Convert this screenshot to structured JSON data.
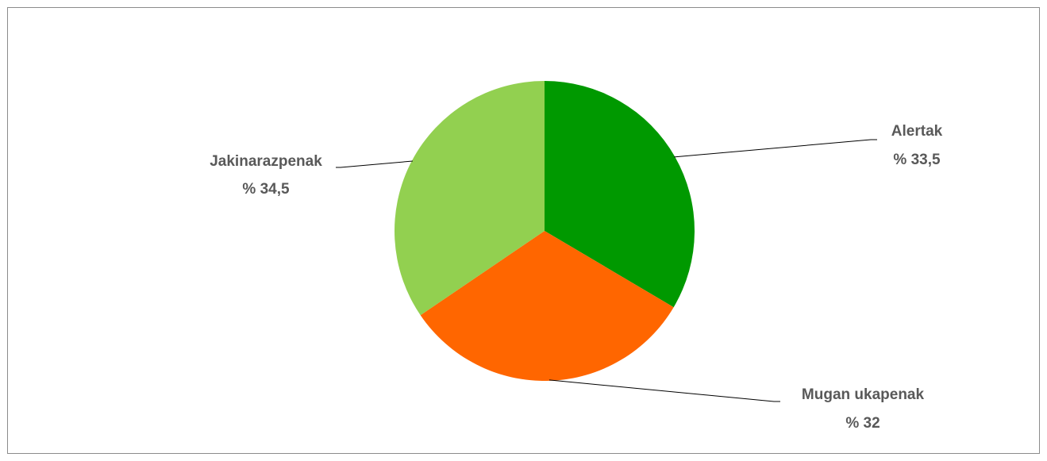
{
  "chart_data": {
    "type": "pie",
    "slices": [
      {
        "label": "Alertak",
        "value": 33.5,
        "value_text": "% 33,5",
        "color": "#009900"
      },
      {
        "label": "Mugan ukapenak",
        "value": 32,
        "value_text": "% 32",
        "color": "#ff6600"
      },
      {
        "label": "Jakinarazpenak",
        "value": 34.5,
        "value_text": "% 34,5",
        "color": "#92d050"
      }
    ],
    "start_angle_deg": 0,
    "direction": "clockwise",
    "legend": "none"
  }
}
